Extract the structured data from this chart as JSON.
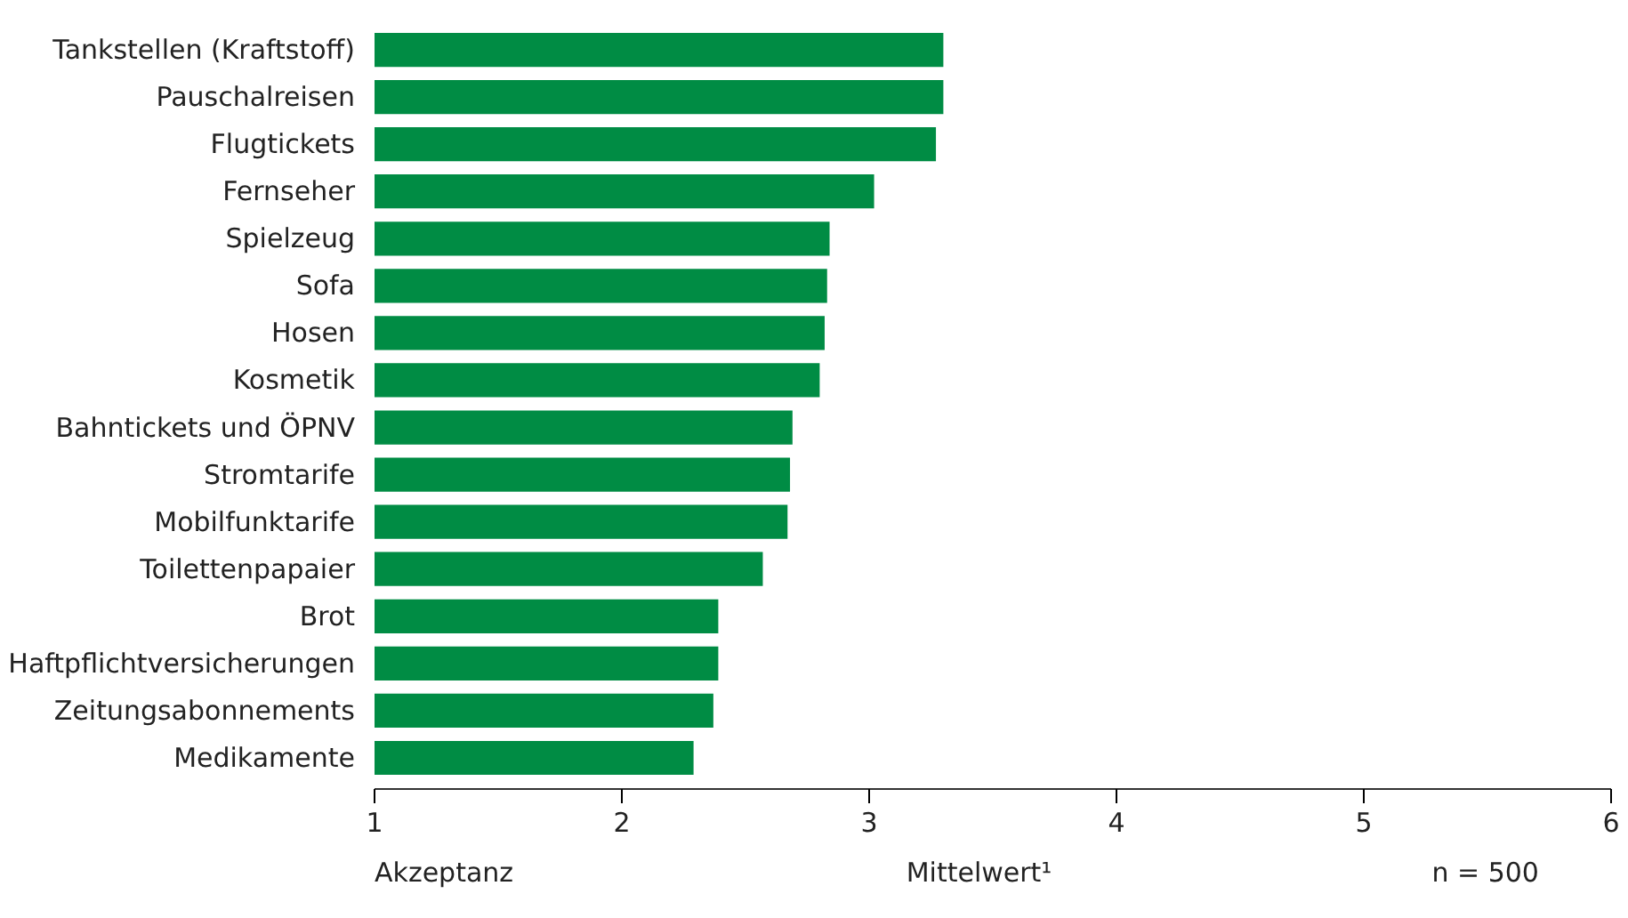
{
  "chart_data": {
    "type": "bar",
    "orientation": "horizontal",
    "categories": [
      "Tankstellen (Kraftstoff)",
      "Pauschalreisen",
      "Flugtickets",
      "Fernseher",
      "Spielzeug",
      "Sofa",
      "Hosen",
      "Kosmetik",
      "Bahntickets und ÖPNV",
      "Stromtarife",
      "Mobilfunktarife",
      "Toilettenpapaier",
      "Brot",
      "Haftpflichtversicherungen",
      "Zeitungsabonnements",
      "Medikamente"
    ],
    "values": [
      3.3,
      3.3,
      3.27,
      3.02,
      2.84,
      2.83,
      2.82,
      2.8,
      2.69,
      2.68,
      2.67,
      2.57,
      2.39,
      2.39,
      2.37,
      2.29
    ],
    "color": "#008c44",
    "xlim": [
      1,
      6
    ],
    "xticks": [
      1,
      2,
      3,
      4,
      5,
      6
    ],
    "xlabel": "Mittelwert¹",
    "annotations": [
      "Akzeptanz",
      "n = 500"
    ],
    "grid": false
  }
}
